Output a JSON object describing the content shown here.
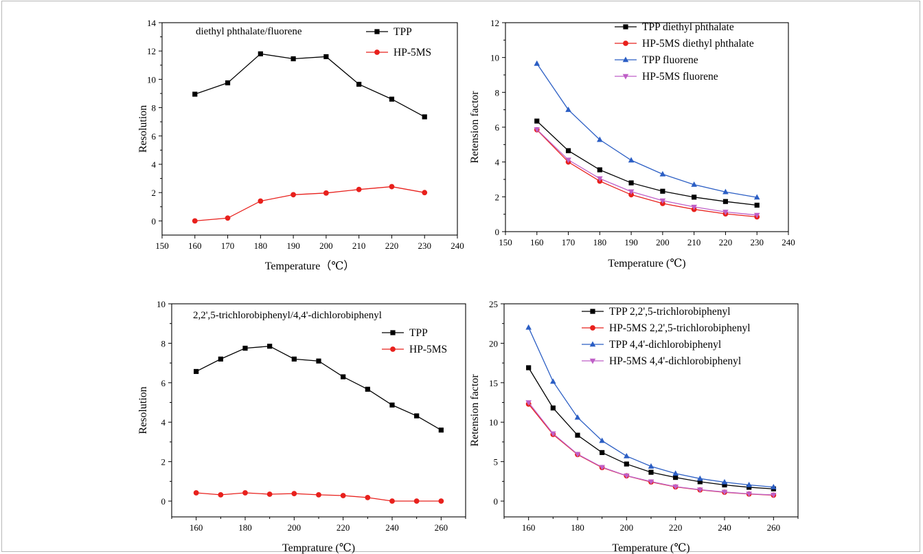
{
  "chart_data": [
    {
      "type": "line",
      "annotation": "diethyl phthalate/fluorene",
      "xlabel": "Temperature（℃）",
      "ylabel": "Resolution",
      "xlim": [
        150,
        240
      ],
      "ylim": [
        -1,
        14
      ],
      "xticks": [
        150,
        160,
        170,
        180,
        190,
        200,
        210,
        220,
        230,
        240
      ],
      "yticks": [
        0,
        2,
        4,
        6,
        8,
        10,
        12,
        14
      ],
      "legend_position": "top-right",
      "x": [
        160,
        170,
        180,
        190,
        200,
        210,
        220,
        230
      ],
      "series": [
        {
          "name": "TPP",
          "color": "#000000",
          "marker": "square",
          "values": [
            8.95,
            9.75,
            11.8,
            11.45,
            11.6,
            9.65,
            8.6,
            7.35
          ]
        },
        {
          "name": "HP-5MS",
          "color": "#e8201c",
          "marker": "circle",
          "values": [
            0.0,
            0.2,
            1.4,
            1.85,
            1.97,
            2.22,
            2.42,
            2.0
          ]
        }
      ]
    },
    {
      "type": "line",
      "xlabel": "Temperature (℃)",
      "ylabel": "Retension factor",
      "xlim": [
        150,
        240
      ],
      "ylim": [
        0,
        12
      ],
      "xticks": [
        150,
        160,
        170,
        180,
        190,
        200,
        210,
        220,
        230,
        240
      ],
      "yticks": [
        0,
        2,
        4,
        6,
        8,
        10,
        12
      ],
      "legend_position": "top-right",
      "x": [
        160,
        170,
        180,
        190,
        200,
        210,
        220,
        230
      ],
      "series": [
        {
          "name": "TPP diethyl phthalate",
          "color": "#000000",
          "marker": "square",
          "values": [
            6.35,
            4.65,
            3.55,
            2.8,
            2.32,
            1.98,
            1.73,
            1.52
          ]
        },
        {
          "name": "HP-5MS diethyl phthalate",
          "color": "#e8201c",
          "marker": "circle",
          "values": [
            5.85,
            4.0,
            2.9,
            2.12,
            1.62,
            1.28,
            1.02,
            0.85
          ]
        },
        {
          "name": "TPP fluorene",
          "color": "#2b5ec4",
          "marker": "triangle-up",
          "values": [
            9.65,
            7.0,
            5.28,
            4.1,
            3.3,
            2.7,
            2.28,
            1.97
          ]
        },
        {
          "name": "HP-5MS fluorene",
          "color": "#bf5fc7",
          "marker": "triangle-down",
          "values": [
            5.87,
            4.12,
            3.05,
            2.3,
            1.78,
            1.42,
            1.13,
            0.95
          ]
        }
      ]
    },
    {
      "type": "line",
      "annotation": "2,2',5-trichlorobiphenyl/4,4'-dichlorobiphenyl",
      "xlabel": "Temprature (℃)",
      "ylabel": "Resolution",
      "xlim": [
        150,
        270
      ],
      "ylim": [
        -0.8,
        10
      ],
      "xticks": [
        160,
        180,
        200,
        220,
        240,
        260
      ],
      "minor_xticks": [
        150,
        170,
        190,
        210,
        230,
        250,
        270
      ],
      "yticks": [
        0,
        2,
        4,
        6,
        8,
        10
      ],
      "legend_position": "top-right",
      "x": [
        160,
        170,
        180,
        190,
        200,
        210,
        220,
        230,
        240,
        250,
        260
      ],
      "series": [
        {
          "name": "TPP",
          "color": "#000000",
          "marker": "square",
          "values": [
            6.57,
            7.2,
            7.75,
            7.85,
            7.2,
            7.1,
            6.3,
            5.67,
            4.87,
            4.32,
            3.6
          ]
        },
        {
          "name": "HP-5MS",
          "color": "#e8201c",
          "marker": "circle",
          "values": [
            0.42,
            0.32,
            0.42,
            0.35,
            0.38,
            0.32,
            0.28,
            0.18,
            0.0,
            0.0,
            0.0
          ]
        }
      ]
    },
    {
      "type": "line",
      "xlabel": "Temperature (℃)",
      "ylabel": "Retension factor",
      "xlim": [
        150,
        270
      ],
      "ylim": [
        -2,
        25
      ],
      "xticks": [
        160,
        180,
        200,
        220,
        240,
        260
      ],
      "minor_xticks": [
        150,
        170,
        190,
        210,
        230,
        250,
        270
      ],
      "yticks": [
        0,
        5,
        10,
        15,
        20,
        25
      ],
      "legend_position": "top-right",
      "x": [
        160,
        170,
        180,
        190,
        200,
        210,
        220,
        230,
        240,
        250,
        260
      ],
      "series": [
        {
          "name": "TPP 2,2',5-trichlorobiphenyl",
          "color": "#000000",
          "marker": "square",
          "values": [
            16.9,
            11.8,
            8.35,
            6.15,
            4.7,
            3.65,
            3.0,
            2.45,
            2.05,
            1.75,
            1.55
          ]
        },
        {
          "name": "HP-5MS 2,2',5-trichlorobiphenyl",
          "color": "#e8201c",
          "marker": "circle",
          "values": [
            12.3,
            8.45,
            5.9,
            4.25,
            3.2,
            2.42,
            1.8,
            1.42,
            1.12,
            0.9,
            0.75
          ]
        },
        {
          "name": "TPP 4,4'-dichlorobiphenyl",
          "color": "#2b5ec4",
          "marker": "triangle-up",
          "values": [
            22.0,
            15.15,
            10.6,
            7.65,
            5.7,
            4.4,
            3.5,
            2.85,
            2.4,
            2.05,
            1.78
          ]
        },
        {
          "name": "HP-5MS 4,4'-dichlorobiphenyl",
          "color": "#bf5fc7",
          "marker": "triangle-down",
          "values": [
            12.5,
            8.55,
            5.95,
            4.3,
            3.22,
            2.47,
            1.83,
            1.45,
            1.15,
            0.92,
            0.78
          ]
        }
      ]
    }
  ]
}
